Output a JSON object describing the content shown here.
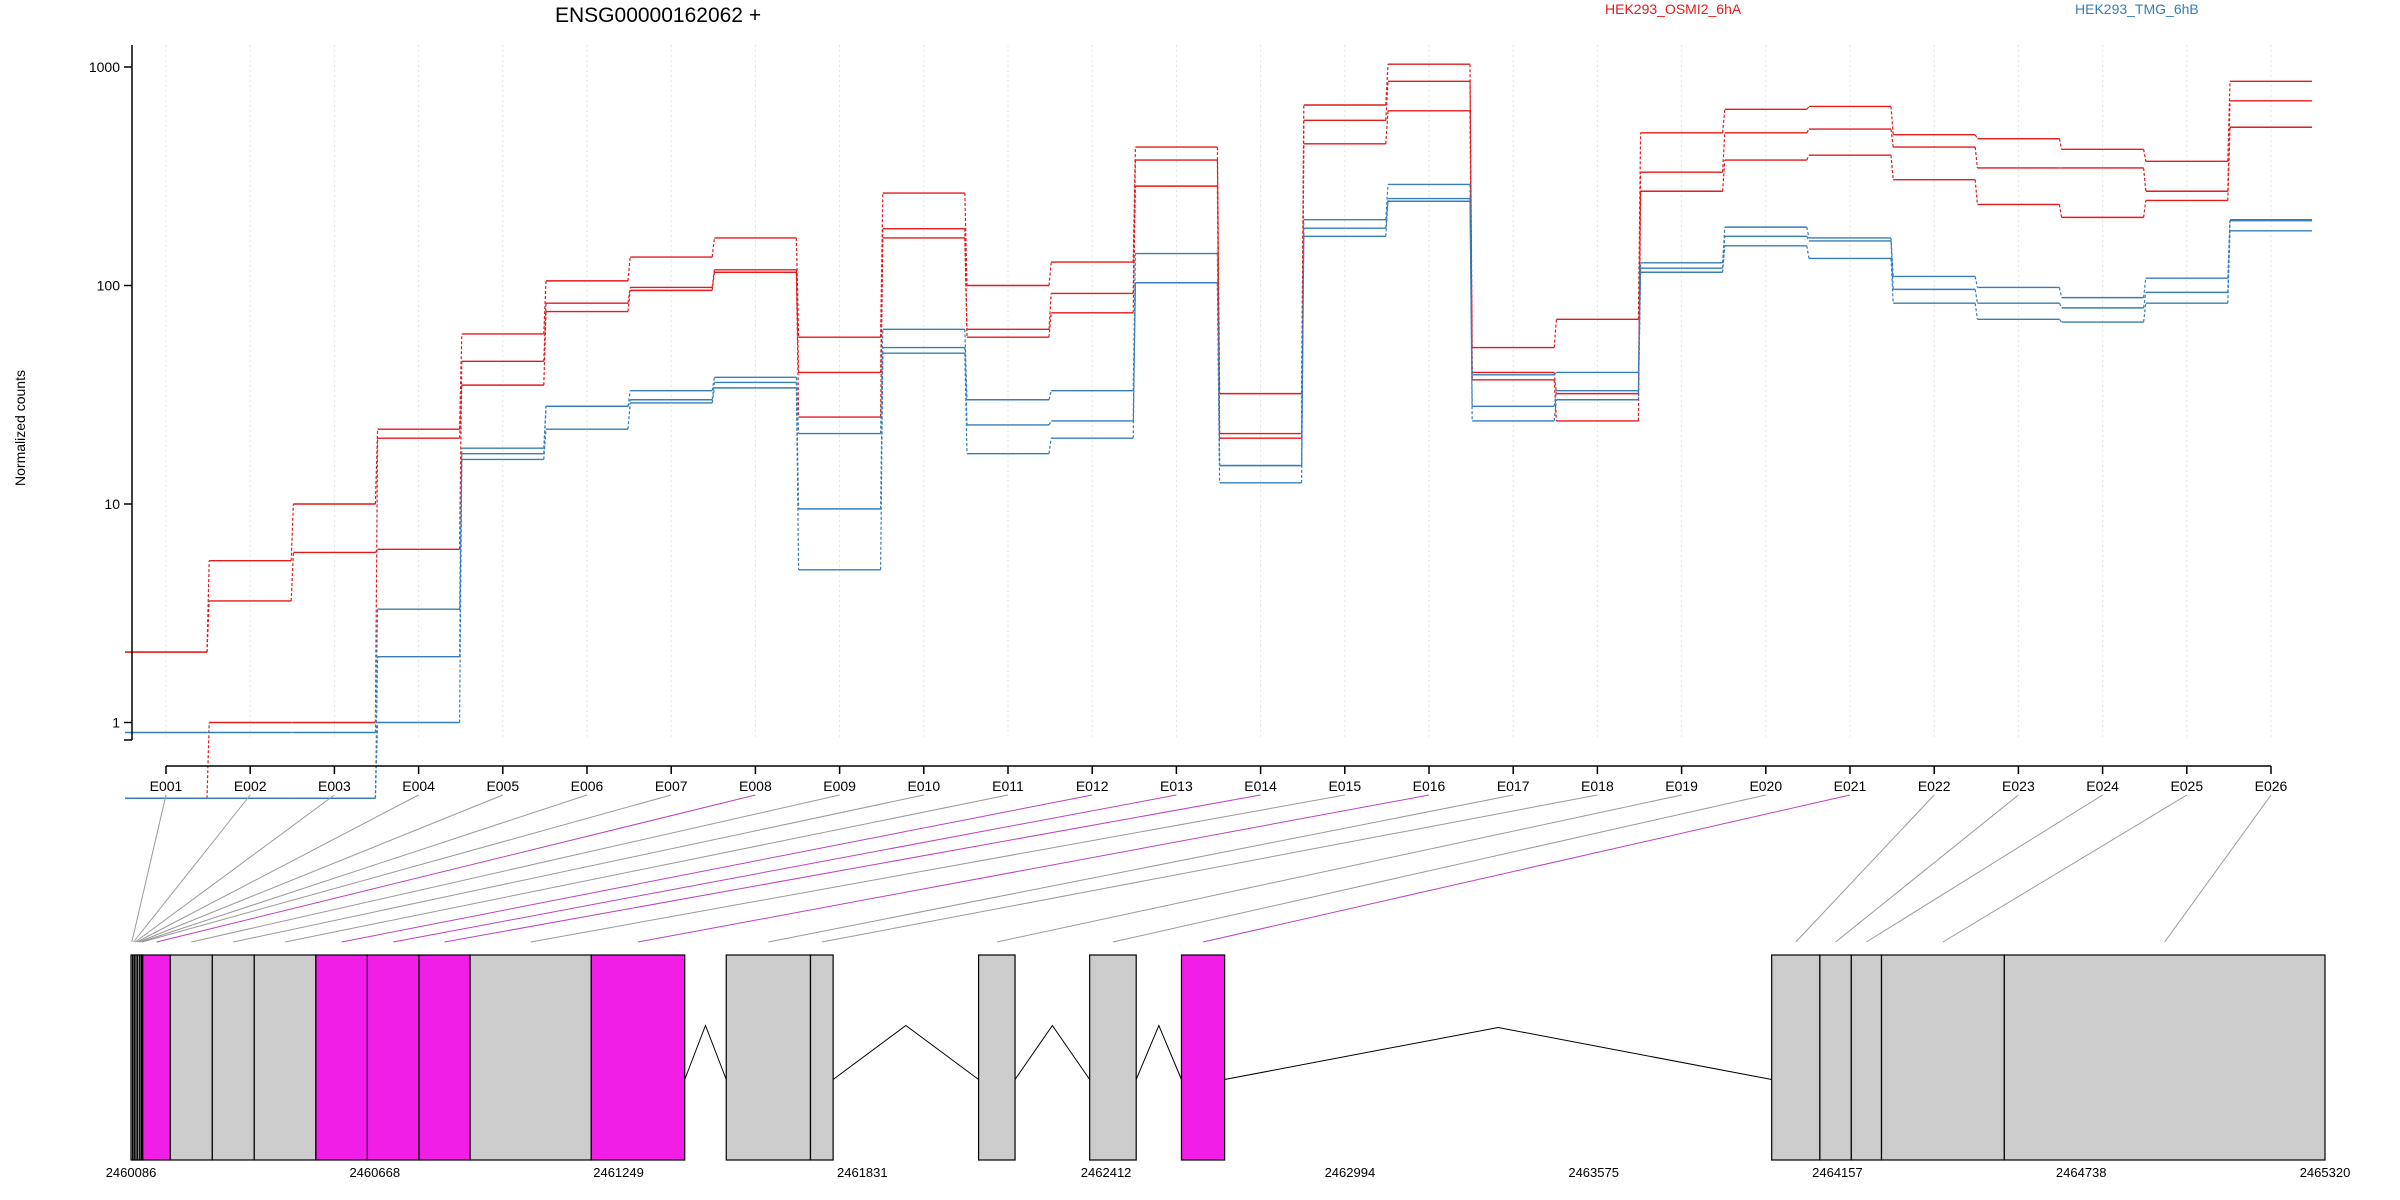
{
  "chart_data": {
    "type": "line",
    "title": "ENSG00000162062 +",
    "ylabel": "Normalized counts",
    "xlabel": "",
    "yscale": "log",
    "yticks": [
      1,
      10,
      100,
      1000
    ],
    "ylim": [
      0.45,
      1500
    ],
    "grid": "vertical dotted lines at exon positions",
    "legend": "top-right",
    "categories": [
      "E001",
      "E002",
      "E003",
      "E004",
      "E005",
      "E006",
      "E007",
      "E008",
      "E009",
      "E010",
      "E011",
      "E012",
      "E013",
      "E014",
      "E015",
      "E016",
      "E017",
      "E018",
      "E019",
      "E020",
      "E021",
      "E022",
      "E023",
      "E024",
      "E025",
      "E026"
    ],
    "series": [
      {
        "name": "HEK293_OSMI2_6hA",
        "color": "#e41a1c",
        "values": [
          2.1,
          5.5,
          10,
          22,
          60,
          105,
          135,
          165,
          58,
          265,
          100,
          128,
          430,
          32,
          670,
          1030,
          52,
          70,
          500,
          640,
          660,
          490,
          470,
          420,
          370,
          860
        ]
      },
      {
        "group": "HEK293_OSMI2_6hA",
        "color": "#e41a1c",
        "values": [
          2.1,
          3.6,
          6,
          6.2,
          45,
          83,
          98,
          118,
          40,
          182,
          63,
          92,
          375,
          21,
          570,
          860,
          40,
          32,
          330,
          500,
          520,
          430,
          345,
          345,
          270,
          700
        ]
      },
      {
        "group": "HEK293_OSMI2_6hA",
        "color": "#e41a1c",
        "values": [
          0.45,
          1.0,
          1.0,
          20,
          35,
          76,
          95,
          115,
          25,
          165,
          58,
          75,
          285,
          20,
          445,
          630,
          37,
          24,
          270,
          375,
          395,
          305,
          235,
          205,
          245,
          530
        ]
      },
      {
        "name": "HEK293_TMG_6hB",
        "color": "#377eb8",
        "values": [
          0.9,
          0.9,
          0.9,
          3.3,
          18,
          28,
          33,
          38,
          21,
          63,
          30,
          33,
          140,
          15,
          200,
          290,
          39,
          40,
          127,
          185,
          165,
          110,
          98,
          88,
          108,
          200
        ]
      },
      {
        "group": "HEK293_TMG_6hB",
        "color": "#377eb8",
        "values": [
          0.45,
          0.45,
          0.45,
          2.0,
          17,
          28,
          30,
          36,
          9.5,
          52,
          23,
          24,
          103,
          15,
          183,
          250,
          28,
          33,
          120,
          168,
          160,
          96,
          83,
          79,
          93,
          198
        ]
      },
      {
        "group": "HEK293_TMG_6hB",
        "color": "#377eb8",
        "values": [
          0.45,
          0.45,
          0.45,
          1.0,
          16,
          22,
          29,
          34,
          5,
          49,
          17,
          20,
          103,
          12.5,
          168,
          243,
          24,
          30,
          115,
          152,
          133,
          83,
          70,
          68,
          83,
          178
        ]
      }
    ]
  },
  "gene_model": {
    "coord_ticks": [
      "2460086",
      "2460668",
      "2461249",
      "2461831",
      "2462412",
      "2462994",
      "2463575",
      "2464157",
      "2464738",
      "2465320"
    ],
    "coord_min": 2460086,
    "coord_max": 2465320,
    "exon_color": "#cccccc",
    "highlight_color": "#f01ee6",
    "highlighted_exons": [
      "E008",
      "E012",
      "E013",
      "E014",
      "E016",
      "E021"
    ],
    "exons": [
      {
        "id": "E001",
        "start": 2460086,
        "end": 2460090
      },
      {
        "id": "E002",
        "start": 2460090,
        "end": 2460094
      },
      {
        "id": "E003",
        "start": 2460094,
        "end": 2460098
      },
      {
        "id": "E004",
        "start": 2460098,
        "end": 2460102
      },
      {
        "id": "E005",
        "start": 2460102,
        "end": 2460107
      },
      {
        "id": "E006",
        "start": 2460107,
        "end": 2460111
      },
      {
        "id": "E007",
        "start": 2460111,
        "end": 2460114
      },
      {
        "id": "E008",
        "start": 2460114,
        "end": 2460180
      },
      {
        "id": "E009",
        "start": 2460180,
        "end": 2460280
      },
      {
        "id": "E010",
        "start": 2460280,
        "end": 2460380
      },
      {
        "id": "E011",
        "start": 2460380,
        "end": 2460527
      },
      {
        "id": "E012",
        "start": 2460527,
        "end": 2460650
      },
      {
        "id": "E013",
        "start": 2460650,
        "end": 2460773
      },
      {
        "id": "E014",
        "start": 2460773,
        "end": 2460895
      },
      {
        "id": "E015",
        "start": 2460895,
        "end": 2461184
      },
      {
        "id": "E016",
        "start": 2461184,
        "end": 2461407
      },
      {
        "id": "E017",
        "start": 2461506,
        "end": 2461707
      },
      {
        "id": "E018",
        "start": 2461707,
        "end": 2461761
      },
      {
        "id": "E019",
        "start": 2462108,
        "end": 2462195
      },
      {
        "id": "E020",
        "start": 2462373,
        "end": 2462484
      },
      {
        "id": "E021",
        "start": 2462592,
        "end": 2462695
      },
      {
        "id": "E022",
        "start": 2464000,
        "end": 2464115
      },
      {
        "id": "E023",
        "start": 2464115,
        "end": 2464190
      },
      {
        "id": "E024",
        "start": 2464190,
        "end": 2464262
      },
      {
        "id": "E025",
        "start": 2464262,
        "end": 2464555
      },
      {
        "id": "E026",
        "start": 2464555,
        "end": 2465320
      }
    ],
    "introns": [
      {
        "from": 2461407,
        "to": 2461506
      },
      {
        "from": 2461761,
        "to": 2462108
      },
      {
        "from": 2462195,
        "to": 2462373
      },
      {
        "from": 2462484,
        "to": 2462592
      },
      {
        "from": 2462695,
        "to": 2464000
      }
    ]
  }
}
